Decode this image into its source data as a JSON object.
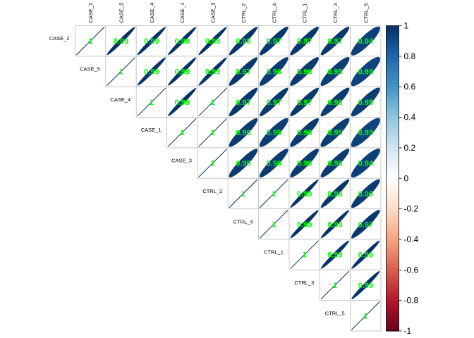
{
  "chart_data": {
    "type": "heatmap",
    "variables": [
      "CASE_2",
      "CASE_5",
      "CASE_4",
      "CASE_1",
      "CASE_3",
      "CTRL_2",
      "CTRL_4",
      "CTRL_1",
      "CTRL_3",
      "CTRL_5"
    ],
    "matrix": [
      [
        1,
        0.99,
        0.99,
        0.99,
        0.99,
        0.98,
        0.97,
        0.97,
        0.97,
        0.94
      ],
      [
        null,
        1,
        0.99,
        0.99,
        0.99,
        0.97,
        0.96,
        0.96,
        0.95,
        0.93
      ],
      [
        null,
        null,
        1,
        0.99,
        1,
        0.97,
        0.97,
        0.97,
        0.96,
        0.95
      ],
      [
        null,
        null,
        null,
        1,
        1,
        0.96,
        0.95,
        0.96,
        0.95,
        0.93
      ],
      [
        null,
        null,
        null,
        null,
        1,
        0.96,
        0.96,
        0.96,
        0.96,
        0.94
      ],
      [
        null,
        null,
        null,
        null,
        null,
        1,
        1,
        0.99,
        0.98,
        0.96
      ],
      [
        null,
        null,
        null,
        null,
        null,
        null,
        1,
        0.99,
        0.99,
        0.97
      ],
      [
        null,
        null,
        null,
        null,
        null,
        null,
        null,
        1,
        0.99,
        0.99
      ],
      [
        null,
        null,
        null,
        null,
        null,
        null,
        null,
        null,
        1,
        0.99
      ],
      [
        null,
        null,
        null,
        null,
        null,
        null,
        null,
        null,
        null,
        1
      ]
    ],
    "labels": [
      [
        "1",
        "0.99",
        "0.99",
        "0.99",
        "0.99",
        "0.98",
        "0.97",
        "0.97",
        "0.97",
        "0.94"
      ],
      [
        "",
        "1",
        "0.99",
        "0.99",
        "0.99",
        "0.97",
        "0.96",
        "0.96",
        "0.95",
        "0.93"
      ],
      [
        "",
        "",
        "1",
        "0.99",
        "1",
        "0.97",
        "0.97",
        "0.97",
        "0.96",
        "0.95"
      ],
      [
        "",
        "",
        "",
        "1",
        "1",
        "0.96",
        "0.95",
        "0.96",
        "0.95",
        "0.93"
      ],
      [
        "",
        "",
        "",
        "",
        "1",
        "0.96",
        "0.96",
        "0.96",
        "0.96",
        "0.94"
      ],
      [
        "",
        "",
        "",
        "",
        "",
        "1",
        "1",
        "0.99",
        "0.98",
        "0.96"
      ],
      [
        "",
        "",
        "",
        "",
        "",
        "",
        "1",
        "0.99",
        "0.99",
        "0.97"
      ],
      [
        "",
        "",
        "",
        "",
        "",
        "",
        "",
        "1",
        "0.99",
        "0.99"
      ],
      [
        "",
        "",
        "",
        "",
        "",
        "",
        "",
        "",
        "1",
        "0.99"
      ],
      [
        "",
        "",
        "",
        "",
        "",
        "",
        "",
        "",
        "",
        "1"
      ]
    ],
    "triangle": "upper",
    "method": "ellipse",
    "colorbar": {
      "range": [
        -1,
        1
      ],
      "ticks": [
        "1",
        "0.8",
        "0.6",
        "0.4",
        "0.2",
        "0",
        "-0.2",
        "-0.4",
        "-0.6",
        "-0.8",
        "-1"
      ],
      "colors": [
        "#67001f",
        "#b2182b",
        "#d6604d",
        "#f4a582",
        "#fddbc7",
        "#ffffff",
        "#d1e5f0",
        "#92c5de",
        "#4393c3",
        "#2166ac",
        "#053061"
      ],
      "placement": "right"
    },
    "ellipse_color": "#0d3f6e",
    "label_color": "#00ff00"
  }
}
